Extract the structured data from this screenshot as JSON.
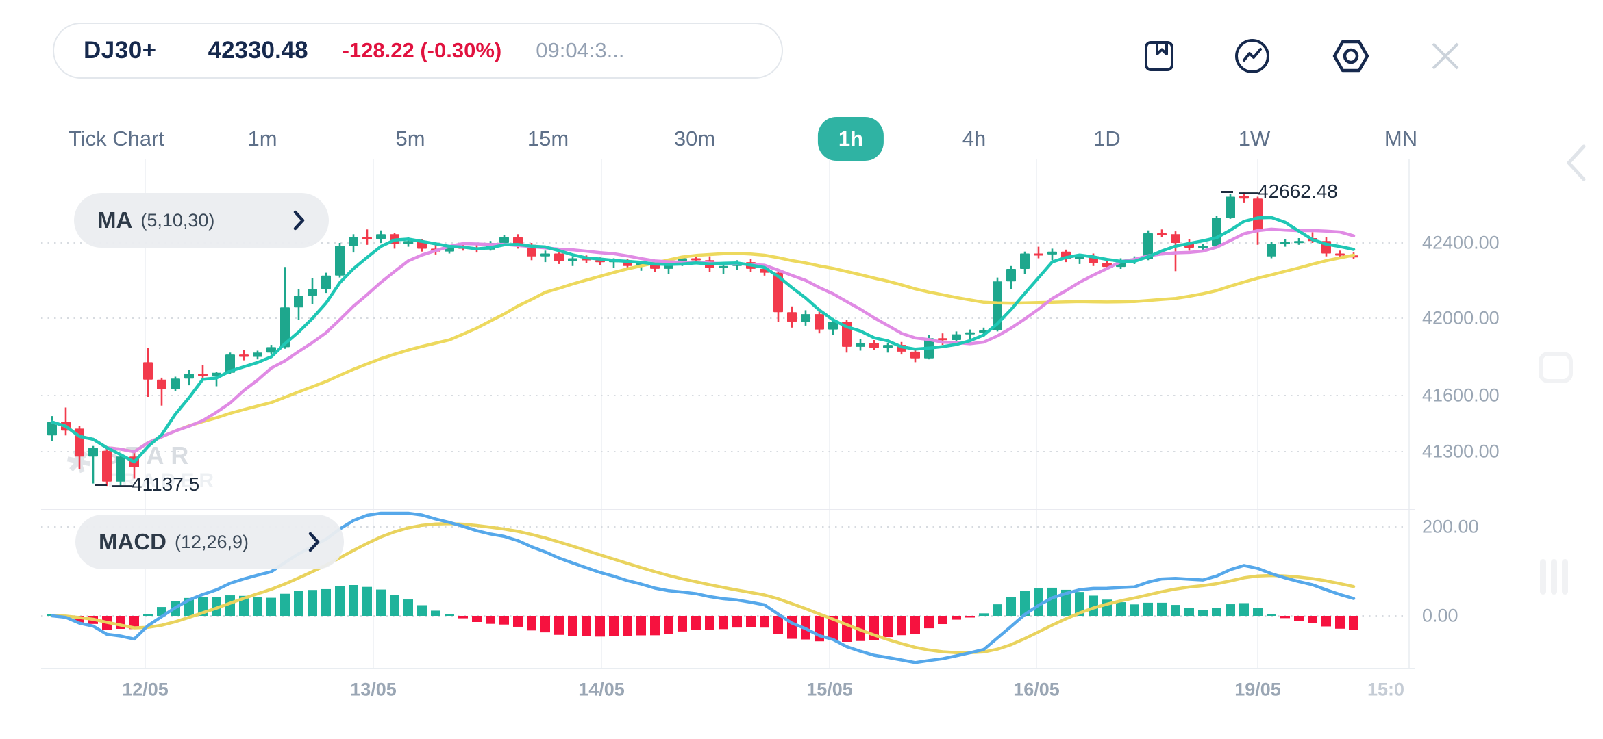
{
  "header": {
    "symbol": "DJ30+",
    "price": "42330.48",
    "change": "-128.22 (-0.30%)",
    "time": "09:04:3..."
  },
  "toolbar": {
    "icons": [
      "bookmark-icon",
      "indicator-icon",
      "settings-icon",
      "close-icon"
    ]
  },
  "side_controls": [
    "collapse-panel-icon",
    "frame-icon",
    "drag-bars-icon"
  ],
  "timeframes": {
    "items": [
      {
        "label": "Tick Chart",
        "active": false
      },
      {
        "label": "1m",
        "active": false
      },
      {
        "label": "5m",
        "active": false
      },
      {
        "label": "15m",
        "active": false
      },
      {
        "label": "30m",
        "active": false
      },
      {
        "label": "1h",
        "active": true
      },
      {
        "label": "4h",
        "active": false
      },
      {
        "label": "1D",
        "active": false
      },
      {
        "label": "1W",
        "active": false
      },
      {
        "label": "MN",
        "active": false
      }
    ]
  },
  "indicators": {
    "ma": {
      "label": "MA",
      "params": "(5,10,30)"
    },
    "macd": {
      "label": "MACD",
      "params": "(12,26,9)"
    }
  },
  "annotations": {
    "high": "—42662.48",
    "low": "—41137.5"
  },
  "axis": {
    "price": [
      "42400.00",
      "42000.00",
      "41600.00",
      "41300.00"
    ],
    "macd": [
      "200.00",
      "0.00"
    ],
    "dates": [
      "12/05",
      "13/05",
      "14/05",
      "15/05",
      "16/05",
      "19/05"
    ],
    "partial_date": "15:0"
  },
  "watermark": {
    "line1": "STAR",
    "line2": "TRADER"
  },
  "chart_data": {
    "type": "candlestick_with_macd",
    "symbol": "DJ30+",
    "interval": "1h",
    "high_marker": 42662.48,
    "low_marker": 41137.5,
    "y_axis": {
      "labels": [
        42400,
        42000,
        41600,
        41300
      ]
    },
    "macd_axis": {
      "labels": [
        200,
        0
      ]
    },
    "ma_periods": [
      5,
      10,
      30
    ],
    "macd_params": {
      "fast": 12,
      "slow": 26,
      "signal": 9
    },
    "colors": {
      "accent_teal": "#2fb3a3",
      "candle_up": "#1ea78d",
      "candle_down": "#f23a4c",
      "ma5": "#1fc7b5",
      "ma10": "#e08be4",
      "ma30": "#edd95e",
      "macd_line": "#56a8ea",
      "macd_signal": "#e9d35e",
      "hist_up": "#1fb39b",
      "hist_down": "#f6123f",
      "navy": "#16294d",
      "red_text": "#e1123f"
    },
    "candles": [
      [
        41400,
        41500,
        41370,
        41470
      ],
      [
        41470,
        41545,
        41400,
        41425
      ],
      [
        41435,
        41450,
        41225,
        41290
      ],
      [
        41290,
        41345,
        41150,
        41335
      ],
      [
        41320,
        41330,
        41137.5,
        41160
      ],
      [
        41160,
        41300,
        41140,
        41290
      ],
      [
        41290,
        41310,
        41175,
        41235
      ],
      [
        41780,
        41855,
        41600,
        41690
      ],
      [
        41690,
        41700,
        41555,
        41640
      ],
      [
        41640,
        41705,
        41630,
        41695
      ],
      [
        41695,
        41740,
        41660,
        41720
      ],
      [
        41720,
        41765,
        41700,
        41710
      ],
      [
        41710,
        41730,
        41655,
        41725
      ],
      [
        41725,
        41830,
        41720,
        41820
      ],
      [
        41820,
        41845,
        41790,
        41808
      ],
      [
        41808,
        41840,
        41795,
        41830
      ],
      [
        41830,
        41870,
        41820,
        41858
      ],
      [
        41858,
        42275,
        41850,
        42065
      ],
      [
        42065,
        42160,
        42000,
        42125
      ],
      [
        42125,
        42215,
        42080,
        42160
      ],
      [
        42160,
        42245,
        42140,
        42230
      ],
      [
        42230,
        42400,
        42220,
        42385
      ],
      [
        42385,
        42445,
        42350,
        42430
      ],
      [
        42430,
        42470,
        42390,
        42420
      ],
      [
        42420,
        42465,
        42400,
        42445
      ],
      [
        42445,
        42450,
        42370,
        42395
      ],
      [
        42395,
        42430,
        42380,
        42410
      ],
      [
        42410,
        42420,
        42355,
        42370
      ],
      [
        42370,
        42395,
        42340,
        42355
      ],
      [
        42355,
        42390,
        42345,
        42380
      ],
      [
        42380,
        42400,
        42360,
        42375
      ],
      [
        42375,
        42395,
        42350,
        42365
      ],
      [
        42365,
        42410,
        42360,
        42400
      ],
      [
        42400,
        42440,
        42390,
        42430
      ],
      [
        42430,
        42445,
        42370,
        42390
      ],
      [
        42390,
        42400,
        42310,
        42330
      ],
      [
        42330,
        42360,
        42300,
        42345
      ],
      [
        42345,
        42350,
        42290,
        42305
      ],
      [
        42305,
        42330,
        42280,
        42320
      ],
      [
        42320,
        42335,
        42295,
        42310
      ],
      [
        42310,
        42325,
        42285,
        42300
      ],
      [
        42300,
        42320,
        42270,
        42310
      ],
      [
        42310,
        42315,
        42260,
        42280
      ],
      [
        42280,
        42305,
        42255,
        42295
      ],
      [
        42295,
        42310,
        42250,
        42265
      ],
      [
        42265,
        42300,
        42240,
        42290
      ],
      [
        42290,
        42330,
        42280,
        42320
      ],
      [
        42320,
        42340,
        42300,
        42310
      ],
      [
        42310,
        42330,
        42250,
        42270
      ],
      [
        42270,
        42290,
        42240,
        42280
      ],
      [
        42280,
        42310,
        42260,
        42300
      ],
      [
        42300,
        42315,
        42250,
        42265
      ],
      [
        42265,
        42280,
        42230,
        42245
      ],
      [
        42245,
        42260,
        41990,
        42040
      ],
      [
        42040,
        42070,
        41960,
        41990
      ],
      [
        41990,
        42050,
        41970,
        42030
      ],
      [
        42030,
        42060,
        41930,
        41950
      ],
      [
        41950,
        42010,
        41920,
        41990
      ],
      [
        41990,
        42000,
        41830,
        41860
      ],
      [
        41860,
        41900,
        41840,
        41880
      ],
      [
        41880,
        41895,
        41845,
        41855
      ],
      [
        41855,
        41880,
        41830,
        41870
      ],
      [
        41870,
        41885,
        41820,
        41835
      ],
      [
        41835,
        41850,
        41780,
        41800
      ],
      [
        41800,
        41920,
        41795,
        41905
      ],
      [
        41905,
        41930,
        41870,
        41895
      ],
      [
        41895,
        41940,
        41885,
        41925
      ],
      [
        41925,
        41950,
        41900,
        41935
      ],
      [
        41935,
        41960,
        41910,
        41945
      ],
      [
        41945,
        42220,
        41940,
        42200
      ],
      [
        42200,
        42280,
        42160,
        42265
      ],
      [
        42265,
        42355,
        42240,
        42345
      ],
      [
        42345,
        42380,
        42320,
        42340
      ],
      [
        42340,
        42370,
        42310,
        42355
      ],
      [
        42355,
        42365,
        42300,
        42315
      ],
      [
        42315,
        42340,
        42290,
        42330
      ],
      [
        42330,
        42345,
        42280,
        42295
      ],
      [
        42295,
        42310,
        42260,
        42275
      ],
      [
        42275,
        42320,
        42265,
        42305
      ],
      [
        42305,
        42330,
        42290,
        42315
      ],
      [
        42315,
        42465,
        42310,
        42450
      ],
      [
        42450,
        42470,
        42430,
        42445
      ],
      [
        42445,
        42460,
        42253,
        42400
      ],
      [
        42400,
        42420,
        42360,
        42375
      ],
      [
        42375,
        42395,
        42355,
        42385
      ],
      [
        42385,
        42540,
        42380,
        42530
      ],
      [
        42530,
        42655,
        42525,
        42640
      ],
      [
        42645,
        42662.48,
        42610,
        42630
      ],
      [
        42630,
        42640,
        42390,
        42465
      ],
      [
        42330,
        42405,
        42320,
        42395
      ],
      [
        42395,
        42420,
        42380,
        42405
      ],
      [
        42405,
        42425,
        42390,
        42410
      ],
      [
        42425,
        42455,
        42400,
        42410
      ],
      [
        42410,
        42430,
        42330,
        42345
      ],
      [
        42345,
        42360,
        42320,
        42335
      ],
      [
        42335,
        42350,
        42318,
        42330.5
      ]
    ]
  }
}
